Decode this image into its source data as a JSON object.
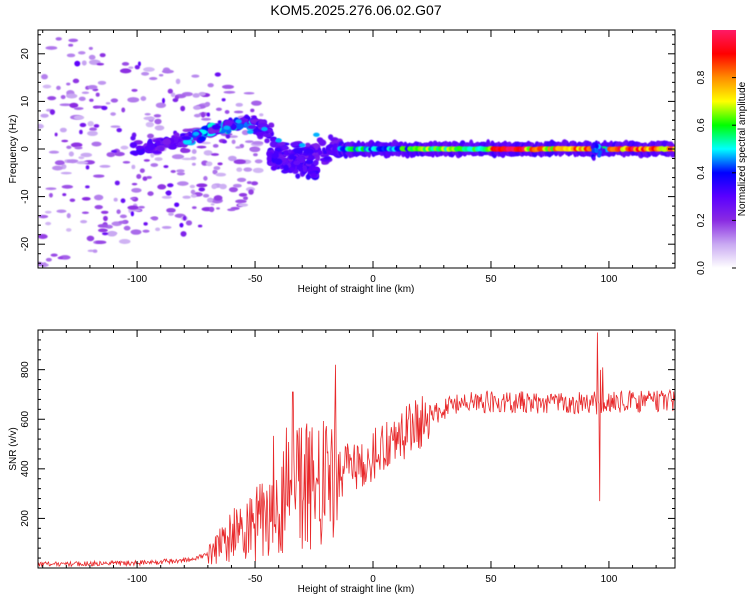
{
  "figure": {
    "title": "KOM5.2025.276.06.02.G07"
  },
  "chart_data": [
    {
      "type": "heatmap",
      "title": "KOM5.2025.276.06.02.G07",
      "xlabel": "Height of straight line (km)",
      "ylabel": "Frequency (Hz)",
      "xlim": [
        -142,
        128
      ],
      "ylim": [
        -25,
        25
      ],
      "x_ticks": [
        -100,
        -50,
        0,
        50,
        100
      ],
      "y_ticks": [
        -20,
        -10,
        0,
        10,
        20
      ],
      "grid": false,
      "colorbar": {
        "label": "Normalized spectral amplitude",
        "range": [
          0,
          1
        ],
        "ticks": [
          0.0,
          0.2,
          0.4,
          0.6,
          0.8
        ],
        "colormap": [
          "#ffffff",
          "#c9a9f2",
          "#8a2be2",
          "#5a00ff",
          "#0000ff",
          "#00ffff",
          "#00ff00",
          "#ffff00",
          "#ff8c00",
          "#ff0000",
          "#ff1a66"
        ]
      },
      "ridge_centerline_hz": [
        {
          "x": -100,
          "y": 0.0
        },
        {
          "x": -80,
          "y": 2.0
        },
        {
          "x": -65,
          "y": 4.5
        },
        {
          "x": -55,
          "y": 5.5
        },
        {
          "x": -45,
          "y": 4.0
        },
        {
          "x": -35,
          "y": -2.0
        },
        {
          "x": -20,
          "y": 0.0
        },
        {
          "x": 0,
          "y": 0.0
        },
        {
          "x": 128,
          "y": 0.0
        }
      ]
    },
    {
      "type": "line",
      "xlabel": "Height of straight line (km)",
      "ylabel": "SNR (v/v)",
      "xlim": [
        -142,
        128
      ],
      "ylim": [
        0,
        960
      ],
      "x_ticks": [
        -100,
        -50,
        0,
        50,
        100
      ],
      "y_ticks": [
        200,
        400,
        600,
        800
      ],
      "grid": false,
      "series": [
        {
          "name": "SNR",
          "color": "#e8282a",
          "envelope": [
            {
              "x": -142,
              "y": 15
            },
            {
              "x": -100,
              "y": 20
            },
            {
              "x": -80,
              "y": 30
            },
            {
              "x": -70,
              "y": 55
            },
            {
              "x": -60,
              "y": 130
            },
            {
              "x": -50,
              "y": 180
            },
            {
              "x": -40,
              "y": 250
            },
            {
              "x": -30,
              "y": 320
            },
            {
              "x": -20,
              "y": 330
            },
            {
              "x": -10,
              "y": 400
            },
            {
              "x": 0,
              "y": 450
            },
            {
              "x": 10,
              "y": 520
            },
            {
              "x": 20,
              "y": 590
            },
            {
              "x": 30,
              "y": 640
            },
            {
              "x": 40,
              "y": 670
            },
            {
              "x": 50,
              "y": 670
            },
            {
              "x": 80,
              "y": 665
            },
            {
              "x": 100,
              "y": 670
            },
            {
              "x": 128,
              "y": 675
            }
          ],
          "spikes": [
            {
              "x": -34,
              "y": 710
            },
            {
              "x": -16,
              "y": 820
            },
            {
              "x": 95,
              "y": 950
            },
            {
              "x": 96,
              "y": 270
            }
          ]
        }
      ]
    }
  ]
}
